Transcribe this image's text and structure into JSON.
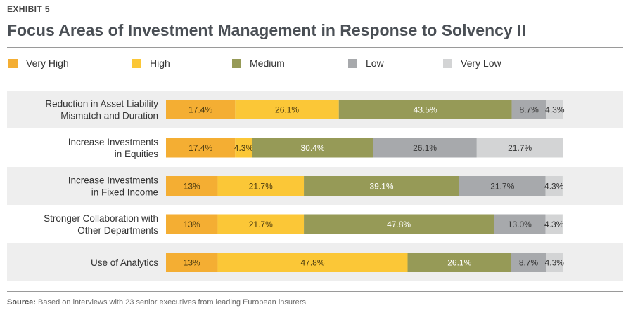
{
  "exhibit_label": "EXHIBIT 5",
  "title": "Focus Areas of Investment Management in Response to Solvency II",
  "source": {
    "label": "Source:",
    "text": "Based on interviews with 23 senior executives from leading European insurers"
  },
  "chart_data": {
    "type": "bar",
    "orientation": "horizontal",
    "stacked": true,
    "title": "Focus Areas of Investment Management in Response to Solvency II",
    "xlabel": "",
    "ylabel": "",
    "xlim": [
      0,
      100
    ],
    "legend_position": "top",
    "categories": [
      [
        "Reduction in Asset Liability",
        "Mismatch and Duration"
      ],
      [
        "Increase Investments",
        "in Equities"
      ],
      [
        "Increase Investments",
        "in Fixed Income"
      ],
      [
        "Stronger Collaboration with",
        "Other Departments"
      ],
      [
        "Use of Analytics"
      ]
    ],
    "series": [
      {
        "name": "Very High",
        "color": "#f4ae33",
        "text_color": "#4a3a10",
        "values": [
          17.4,
          17.4,
          13,
          13,
          13
        ],
        "labels": [
          "17.4%",
          "17.4%",
          "13%",
          "13%",
          "13%"
        ]
      },
      {
        "name": "High",
        "color": "#fbc737",
        "text_color": "#4a3a10",
        "values": [
          26.1,
          4.3,
          21.7,
          21.7,
          47.8
        ],
        "labels": [
          "26.1%",
          "4.3%",
          "21.7%",
          "21.7%",
          "47.8%"
        ]
      },
      {
        "name": "Medium",
        "color": "#969a57",
        "text_color": "#ffffff",
        "values": [
          43.5,
          30.4,
          39.1,
          47.8,
          26.1
        ],
        "labels": [
          "43.5%",
          "30.4%",
          "39.1%",
          "47.8%",
          "26.1%"
        ]
      },
      {
        "name": "Low",
        "color": "#a7a9ac",
        "text_color": "#333333",
        "values": [
          8.7,
          26.1,
          21.7,
          13.0,
          8.7
        ],
        "labels": [
          "8.7%",
          "26.1%",
          "21.7%",
          "13.0%",
          "8.7%"
        ]
      },
      {
        "name": "Very Low",
        "color": "#d3d4d5",
        "text_color": "#333333",
        "values": [
          4.3,
          21.7,
          4.3,
          4.3,
          4.3
        ],
        "labels": [
          "4.3%",
          "21.7%",
          "4.3%",
          "4.3%",
          "4.3%"
        ]
      }
    ]
  }
}
